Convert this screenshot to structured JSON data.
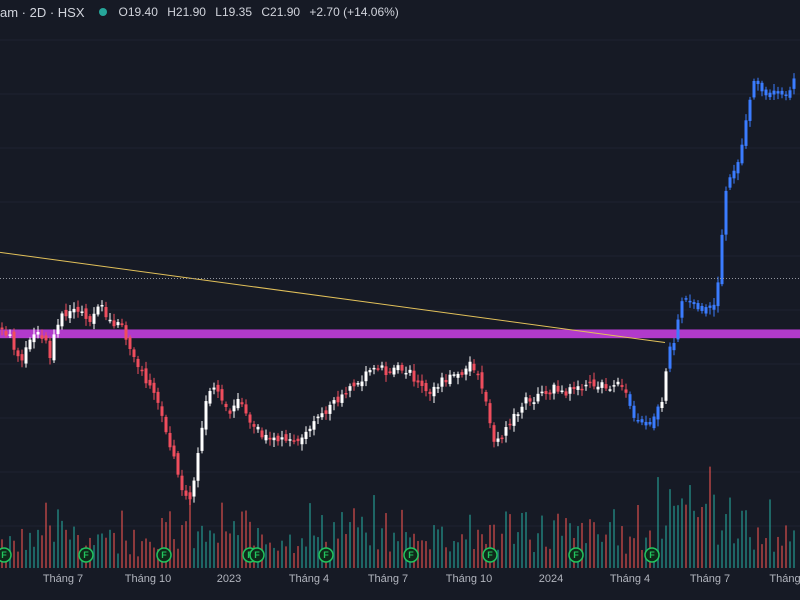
{
  "header": {
    "symbol_text": "am · 2D · HSX",
    "status_color": "#26a69a",
    "open_label": "O",
    "open": "19.40",
    "high_label": "H",
    "high": "21.90",
    "low_label": "L",
    "low": "19.35",
    "close_label": "C",
    "close": "21.90",
    "change": "+2.70 (+14.06%)"
  },
  "chart_data": {
    "type": "candlestick",
    "interval": "2D",
    "exchange": "HSX",
    "x_tick_labels": [
      "Tháng 7",
      "Tháng 10",
      "2023",
      "Tháng 4",
      "Tháng 7",
      "Tháng 10",
      "2024",
      "Tháng 4",
      "Tháng 7",
      "Tháng"
    ],
    "event_marker_label": "F",
    "event_marker_count": 10,
    "colors": {
      "background": "#161a25",
      "candle_up": "#ffffff",
      "candle_down": "#ef4d5d",
      "candle_highlight": "#3b7cff",
      "volume_up": "#26a69a",
      "volume_down": "#ef5350",
      "support_zone": "#b13acb",
      "trendline": "#e2c15a",
      "price_line": "#9598a1",
      "event_marker": "#22c55e"
    },
    "price_path": [
      [
        0,
        14.6
      ],
      [
        10,
        14.4
      ],
      [
        20,
        13.4
      ],
      [
        30,
        14.2
      ],
      [
        40,
        14.5
      ],
      [
        50,
        13.7
      ],
      [
        60,
        15.0
      ],
      [
        70,
        15.2
      ],
      [
        80,
        15.3
      ],
      [
        90,
        14.9
      ],
      [
        100,
        15.4
      ],
      [
        110,
        14.9
      ],
      [
        120,
        14.7
      ],
      [
        130,
        13.9
      ],
      [
        140,
        13.2
      ],
      [
        150,
        12.5
      ],
      [
        160,
        11.8
      ],
      [
        170,
        10.6
      ],
      [
        180,
        9.4
      ],
      [
        188,
        8.6
      ],
      [
        195,
        9.5
      ],
      [
        202,
        11.3
      ],
      [
        210,
        12.6
      ],
      [
        220,
        12.3
      ],
      [
        230,
        11.8
      ],
      [
        240,
        12.1
      ],
      [
        250,
        11.5
      ],
      [
        260,
        11.0
      ],
      [
        270,
        10.8
      ],
      [
        280,
        10.9
      ],
      [
        290,
        10.7
      ],
      [
        300,
        10.9
      ],
      [
        310,
        11.3
      ],
      [
        320,
        11.6
      ],
      [
        330,
        11.9
      ],
      [
        340,
        12.1
      ],
      [
        350,
        12.5
      ],
      [
        360,
        12.7
      ],
      [
        370,
        13.1
      ],
      [
        380,
        13.2
      ],
      [
        390,
        13.1
      ],
      [
        400,
        13.3
      ],
      [
        410,
        13.0
      ],
      [
        420,
        12.8
      ],
      [
        430,
        12.3
      ],
      [
        440,
        12.7
      ],
      [
        450,
        13.0
      ],
      [
        460,
        13.1
      ],
      [
        470,
        13.3
      ],
      [
        480,
        13.0
      ],
      [
        488,
        11.6
      ],
      [
        495,
        10.6
      ],
      [
        505,
        11.0
      ],
      [
        515,
        11.6
      ],
      [
        525,
        12.2
      ],
      [
        535,
        12.1
      ],
      [
        545,
        12.4
      ],
      [
        555,
        12.5
      ],
      [
        565,
        12.4
      ],
      [
        575,
        12.5
      ],
      [
        585,
        12.7
      ],
      [
        595,
        12.6
      ],
      [
        605,
        12.6
      ],
      [
        615,
        12.7
      ],
      [
        625,
        12.5
      ],
      [
        632,
        11.7
      ],
      [
        640,
        11.3
      ],
      [
        648,
        11.4
      ],
      [
        655,
        11.6
      ],
      [
        662,
        12.2
      ],
      [
        668,
        13.6
      ],
      [
        675,
        14.3
      ],
      [
        682,
        15.4
      ],
      [
        690,
        15.7
      ],
      [
        698,
        15.2
      ],
      [
        705,
        15.3
      ],
      [
        712,
        15.2
      ],
      [
        718,
        16.3
      ],
      [
        725,
        19.2
      ],
      [
        732,
        20.0
      ],
      [
        740,
        20.6
      ],
      [
        748,
        22.3
      ],
      [
        755,
        23.3
      ],
      [
        762,
        22.6
      ],
      [
        770,
        22.7
      ],
      [
        780,
        22.6
      ],
      [
        790,
        22.8
      ],
      [
        800,
        23.5
      ]
    ],
    "highlight_ranges": [
      [
        628,
        660
      ],
      [
        668,
        715
      ],
      [
        718,
        800
      ]
    ],
    "support_zone": [
      14.25,
      14.55
    ],
    "trendline": [
      [
        0,
        17.2
      ],
      [
        665,
        14.1
      ]
    ],
    "price_line": 16.3,
    "y_range": [
      8,
      24.5
    ]
  }
}
